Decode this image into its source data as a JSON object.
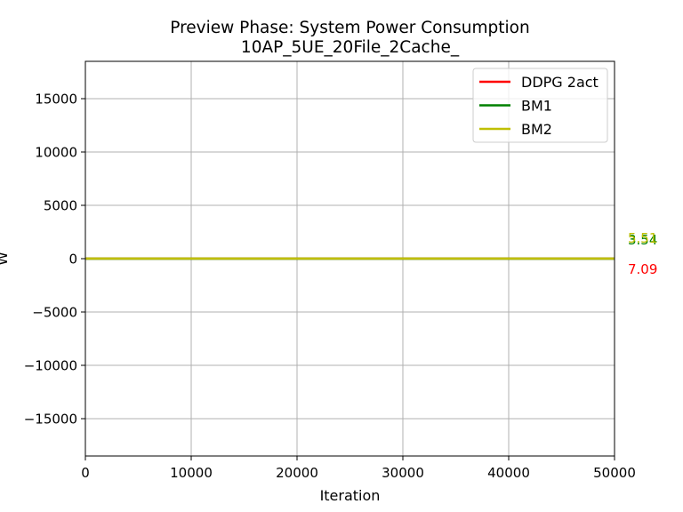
{
  "chart_data": {
    "type": "line",
    "title": "Preview Phase: System Power Consumption",
    "subtitle": "10AP_5UE_20File_2Cache_",
    "xlabel": "Iteration",
    "ylabel": "W",
    "xlim": [
      0,
      50000
    ],
    "ylim": [
      -18500,
      18500
    ],
    "xticks": [
      0,
      10000,
      20000,
      30000,
      40000,
      50000
    ],
    "yticks": [
      -15000,
      -10000,
      -5000,
      0,
      5000,
      10000,
      15000
    ],
    "xtick_labels": [
      "0",
      "10000",
      "20000",
      "30000",
      "40000",
      "50000"
    ],
    "ytick_labels": [
      "−15000",
      "−10000",
      "−5000",
      "0",
      "5000",
      "10000",
      "15000"
    ],
    "grid": true,
    "legend_position": "top-right",
    "x": [
      0,
      50000
    ],
    "series": [
      {
        "name": "DDPG 2act",
        "color": "#ff0000",
        "values": [
          7.09,
          7.09
        ],
        "end_label": "7.09"
      },
      {
        "name": "BM1",
        "color": "#008000",
        "values": [
          3.54,
          3.54
        ],
        "end_label": "3.54"
      },
      {
        "name": "BM2",
        "color": "#bfbf00",
        "values": [
          5.51,
          5.51
        ],
        "end_label": "5.51"
      }
    ]
  }
}
